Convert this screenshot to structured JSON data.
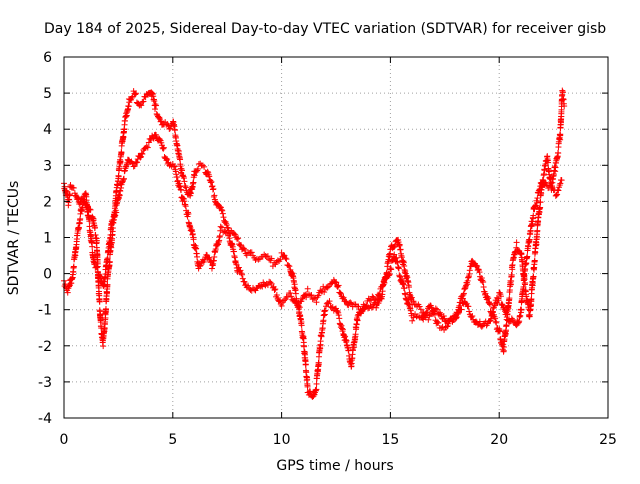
{
  "chart_data": {
    "type": "scatter",
    "title": "Day 184 of 2025, Sidereal Day-to-day VTEC variation (SDTVAR) for receiver gisb",
    "xlabel": "GPS time / hours",
    "ylabel": "SDTVAR / TECUs",
    "xlim": [
      0,
      25
    ],
    "ylim": [
      -4,
      6
    ],
    "xticks": [
      0,
      5,
      10,
      15,
      20,
      25
    ],
    "yticks": [
      -4,
      -3,
      -2,
      -1,
      0,
      1,
      2,
      3,
      4,
      5,
      6
    ],
    "grid": true,
    "marker": "+",
    "series": [
      {
        "name": "SDTVAR",
        "color": "#ff0000",
        "points": [
          [
            0.0,
            2.5
          ],
          [
            0.1,
            2.2
          ],
          [
            0.2,
            2.0
          ],
          [
            0.3,
            2.4
          ],
          [
            0.5,
            2.3
          ],
          [
            0.7,
            1.9
          ],
          [
            0.9,
            2.1
          ],
          [
            1.1,
            1.8
          ],
          [
            1.3,
            1.6
          ],
          [
            1.5,
            0.9
          ],
          [
            1.6,
            -0.5
          ],
          [
            1.7,
            -1.5
          ],
          [
            1.8,
            -1.9
          ],
          [
            1.9,
            -1.2
          ],
          [
            2.0,
            -0.2
          ],
          [
            2.2,
            1.0
          ],
          [
            2.4,
            2.2
          ],
          [
            2.6,
            3.2
          ],
          [
            2.8,
            4.2
          ],
          [
            3.0,
            4.8
          ],
          [
            3.2,
            5.0
          ],
          [
            3.5,
            4.7
          ],
          [
            3.8,
            4.9
          ],
          [
            4.0,
            5.1
          ],
          [
            4.2,
            4.6
          ],
          [
            4.5,
            4.2
          ],
          [
            4.8,
            4.0
          ],
          [
            5.0,
            4.2
          ],
          [
            5.2,
            3.6
          ],
          [
            5.4,
            2.8
          ],
          [
            5.6,
            2.4
          ],
          [
            5.8,
            2.1
          ],
          [
            6.0,
            2.8
          ],
          [
            6.2,
            3.0
          ],
          [
            6.5,
            2.9
          ],
          [
            6.8,
            2.4
          ],
          [
            7.0,
            2.0
          ],
          [
            7.3,
            1.6
          ],
          [
            7.6,
            1.2
          ],
          [
            8.0,
            0.9
          ],
          [
            8.4,
            0.6
          ],
          [
            8.8,
            0.4
          ],
          [
            9.2,
            0.5
          ],
          [
            9.6,
            0.3
          ],
          [
            10.0,
            0.5
          ],
          [
            10.4,
            0.2
          ],
          [
            10.6,
            -0.4
          ],
          [
            10.8,
            -1.0
          ],
          [
            11.0,
            -1.8
          ],
          [
            11.2,
            -3.2
          ],
          [
            11.4,
            -3.5
          ],
          [
            11.6,
            -3.1
          ],
          [
            11.8,
            -1.8
          ],
          [
            12.0,
            -1.0
          ],
          [
            12.2,
            -0.8
          ],
          [
            12.5,
            -1.0
          ],
          [
            12.8,
            -1.5
          ],
          [
            13.0,
            -2.0
          ],
          [
            13.2,
            -2.5
          ],
          [
            13.5,
            -1.2
          ],
          [
            13.8,
            -0.8
          ],
          [
            14.2,
            -1.0
          ],
          [
            14.6,
            -0.6
          ],
          [
            15.0,
            0.6
          ],
          [
            15.3,
            1.0
          ],
          [
            15.6,
            0.3
          ],
          [
            16.0,
            -0.8
          ],
          [
            16.4,
            -1.0
          ],
          [
            16.8,
            -1.2
          ],
          [
            17.2,
            -1.0
          ],
          [
            17.6,
            -1.4
          ],
          [
            18.0,
            -1.2
          ],
          [
            18.4,
            -0.5
          ],
          [
            18.8,
            0.4
          ],
          [
            19.2,
            -0.2
          ],
          [
            19.6,
            -1.0
          ],
          [
            20.0,
            -1.6
          ],
          [
            20.2,
            -2.1
          ],
          [
            20.4,
            -1.0
          ],
          [
            20.6,
            0.2
          ],
          [
            20.8,
            0.8
          ],
          [
            21.0,
            0.6
          ],
          [
            21.2,
            -0.4
          ],
          [
            21.4,
            -1.2
          ],
          [
            21.6,
            0.2
          ],
          [
            21.8,
            1.5
          ],
          [
            22.0,
            2.6
          ],
          [
            22.2,
            3.2
          ],
          [
            22.4,
            2.4
          ],
          [
            22.6,
            3.0
          ],
          [
            22.8,
            3.8
          ],
          [
            22.9,
            5.0
          ],
          [
            23.0,
            4.7
          ]
        ],
        "points_b": [
          [
            0.0,
            -0.2
          ],
          [
            0.2,
            -0.5
          ],
          [
            0.4,
            0.0
          ],
          [
            0.6,
            1.0
          ],
          [
            0.8,
            1.8
          ],
          [
            1.0,
            2.2
          ],
          [
            1.2,
            1.2
          ],
          [
            1.4,
            0.2
          ],
          [
            1.6,
            0.0
          ],
          [
            1.8,
            -0.4
          ],
          [
            2.0,
            0.4
          ],
          [
            2.2,
            1.4
          ],
          [
            2.4,
            1.8
          ],
          [
            2.6,
            2.4
          ],
          [
            2.8,
            2.8
          ],
          [
            3.0,
            3.2
          ],
          [
            3.3,
            3.0
          ],
          [
            3.6,
            3.4
          ],
          [
            3.9,
            3.6
          ],
          [
            4.2,
            3.9
          ],
          [
            4.5,
            3.5
          ],
          [
            4.8,
            3.1
          ],
          [
            5.1,
            2.9
          ],
          [
            5.4,
            2.2
          ],
          [
            5.7,
            1.6
          ],
          [
            6.0,
            0.8
          ],
          [
            6.2,
            0.2
          ],
          [
            6.5,
            0.5
          ],
          [
            6.8,
            0.2
          ],
          [
            7.2,
            1.2
          ],
          [
            7.6,
            1.0
          ],
          [
            8.0,
            0.1
          ],
          [
            8.4,
            -0.3
          ],
          [
            8.8,
            -0.5
          ],
          [
            9.2,
            -0.2
          ],
          [
            9.6,
            -0.4
          ],
          [
            10.0,
            -0.8
          ],
          [
            10.4,
            -0.6
          ],
          [
            10.8,
            -0.9
          ],
          [
            11.2,
            -0.5
          ],
          [
            11.6,
            -0.7
          ],
          [
            12.0,
            -0.4
          ],
          [
            12.4,
            -0.2
          ],
          [
            12.8,
            -0.6
          ],
          [
            13.2,
            -0.9
          ],
          [
            13.6,
            -1.0
          ],
          [
            14.0,
            -0.8
          ],
          [
            14.4,
            -0.6
          ],
          [
            14.8,
            -0.2
          ],
          [
            15.2,
            0.5
          ],
          [
            15.6,
            -0.4
          ],
          [
            16.0,
            -1.2
          ],
          [
            16.4,
            -1.3
          ],
          [
            16.8,
            -0.9
          ],
          [
            17.2,
            -1.4
          ],
          [
            17.6,
            -1.5
          ],
          [
            18.0,
            -1.1
          ],
          [
            18.4,
            -0.8
          ],
          [
            18.8,
            -1.2
          ],
          [
            19.2,
            -1.5
          ],
          [
            19.6,
            -1.2
          ],
          [
            20.0,
            -0.6
          ],
          [
            20.4,
            -1.2
          ],
          [
            20.8,
            -1.5
          ],
          [
            21.0,
            -1.0
          ],
          [
            21.2,
            0.2
          ],
          [
            21.4,
            1.0
          ],
          [
            21.6,
            1.8
          ],
          [
            21.8,
            2.2
          ],
          [
            22.0,
            2.6
          ],
          [
            22.3,
            2.4
          ],
          [
            22.6,
            2.2
          ],
          [
            22.9,
            2.6
          ]
        ]
      }
    ]
  }
}
